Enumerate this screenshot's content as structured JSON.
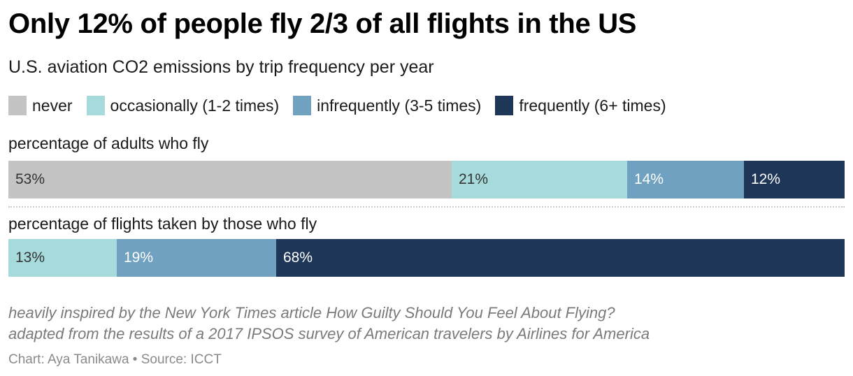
{
  "header": {
    "title": "Only 12% of people fly 2/3 of all flights in the US",
    "subtitle": "U.S. aviation CO2 emissions by trip frequency per year"
  },
  "chart_data": {
    "type": "bar",
    "orientation": "horizontal-stacked-100",
    "title": "Only 12% of people fly 2/3 of all flights in the US",
    "subtitle": "U.S. aviation CO2 emissions by trip frequency per year",
    "legend_position": "top-left",
    "series": [
      {
        "name": "never",
        "color": "#c4c4c4",
        "text_color": "#333333"
      },
      {
        "name": "occasionally (1-2 times)",
        "color": "#a6dadb",
        "text_color": "#333333"
      },
      {
        "name": "infrequently (3-5 times)",
        "color": "#70a1c0",
        "text_color": "#ffffff"
      },
      {
        "name": "frequently (6+ times)",
        "color": "#1e3657",
        "text_color": "#ffffff"
      }
    ],
    "categories": [
      "percentage of adults who fly",
      "percentage of flights taken by those who fly"
    ],
    "rows": [
      {
        "label": "percentage of adults who fly",
        "values": [
          53,
          21,
          14,
          12
        ],
        "labels": [
          "53%",
          "21%",
          "14%",
          "12%"
        ]
      },
      {
        "label": "percentage of flights taken by those who fly",
        "values": [
          0,
          13,
          19,
          68
        ],
        "labels": [
          "",
          "13%",
          "19%",
          "68%"
        ]
      }
    ],
    "xlim": [
      0,
      100
    ]
  },
  "notes": {
    "line1": "heavily inspired by the New York Times article How Guilty Should You Feel About Flying?",
    "line2": "adapted from the results of a 2017 IPSOS survey of American travelers by Airlines for America"
  },
  "credit": "Chart: Aya Tanikawa • Source: ICCT"
}
